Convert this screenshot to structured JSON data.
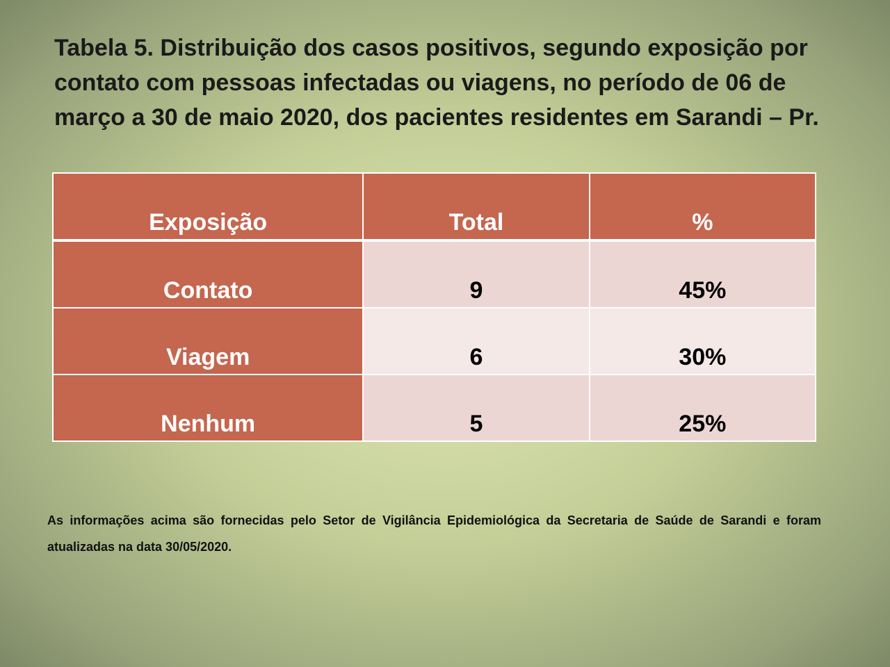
{
  "title": "Tabela 5. Distribuição dos casos positivos, segundo exposição por contato com pessoas infectadas ou viagens, no período de 06 de março a 30 de maio 2020, dos pacientes residentes em Sarandi – Pr.",
  "table": {
    "header": [
      "Exposição",
      "Total",
      "%"
    ],
    "rows": [
      [
        "Contato",
        9,
        "45%"
      ],
      [
        "Viagem",
        6,
        "30%"
      ],
      [
        "Nenhum",
        5,
        "25%"
      ]
    ]
  },
  "footnote": "As informações acima são fornecidas pelo Setor de Vigilância Epidemiológica da Secretaria de Saúde de Sarandi e foram atualizadas na data 30/05/2020."
}
